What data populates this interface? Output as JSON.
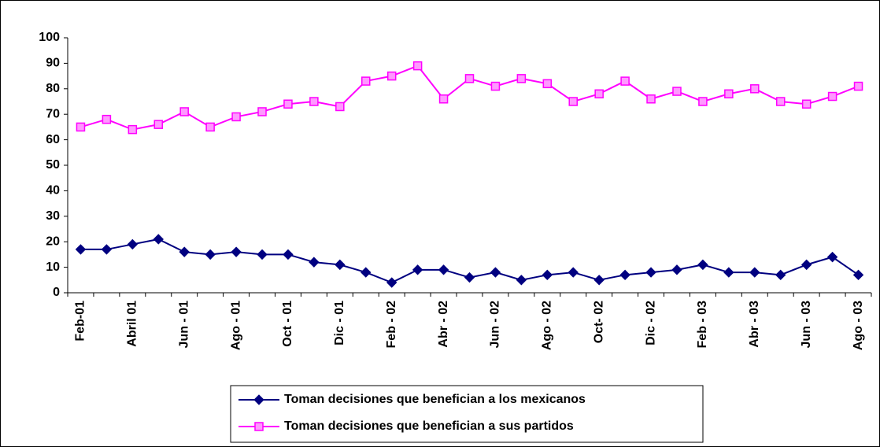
{
  "chart_data": {
    "type": "line",
    "categories": [
      "Feb-01",
      null,
      "Abril 01",
      null,
      "Jun - 01",
      null,
      "Ago - 01",
      null,
      "Oct - 01",
      null,
      "Dic - 01",
      null,
      "Feb - 02",
      null,
      "Abr - 02",
      null,
      "Jun - 02",
      null,
      "Ago - 02",
      null,
      "Oct- 02",
      null,
      "Dic - 02",
      null,
      "Feb - 03",
      null,
      "Abr - 03",
      null,
      "Jun - 03",
      null,
      "Ago - 03"
    ],
    "series": [
      {
        "name": "Toman decisiones que benefician a los mexicanos",
        "color": "#000080",
        "marker": "diamond",
        "values": [
          17,
          17,
          19,
          21,
          16,
          15,
          16,
          15,
          15,
          12,
          11,
          8,
          4,
          9,
          9,
          6,
          8,
          5,
          7,
          8,
          5,
          7,
          8,
          9,
          11,
          8,
          8,
          7,
          11,
          14,
          7
        ]
      },
      {
        "name": "Toman decisiones que benefician a sus partidos",
        "color": "#ff00ff",
        "marker": "square",
        "values": [
          65,
          68,
          64,
          66,
          71,
          65,
          69,
          71,
          74,
          75,
          73,
          83,
          85,
          89,
          76,
          84,
          81,
          84,
          82,
          75,
          78,
          83,
          76,
          79,
          75,
          78,
          80,
          75,
          74,
          77,
          81
        ]
      }
    ],
    "ylim": [
      0,
      100
    ],
    "yticks": [
      0,
      10,
      20,
      30,
      40,
      50,
      60,
      70,
      80,
      90,
      100
    ],
    "legend": "bottom"
  }
}
